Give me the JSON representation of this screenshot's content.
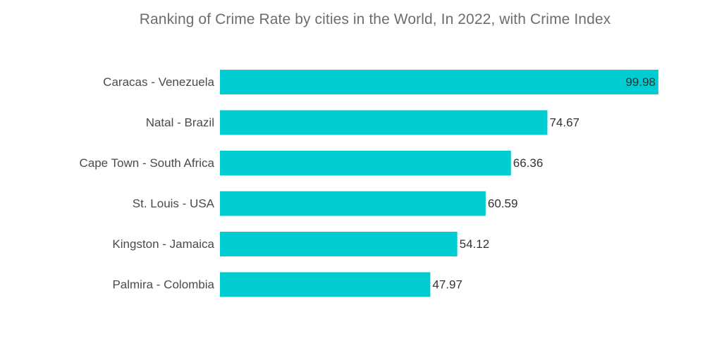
{
  "chart_data": {
    "type": "bar",
    "orientation": "horizontal",
    "title": "Ranking of Crime Rate by cities in the World, In 2022, with Crime Index",
    "xlabel": "",
    "ylabel": "",
    "categories": [
      "Caracas - Venezuela",
      "Natal - Brazil",
      "Cape Town - South Africa",
      "St. Louis - USA",
      "Kingston - Jamaica",
      "Palmira - Colombia"
    ],
    "values": [
      99.98,
      74.67,
      66.36,
      60.59,
      54.12,
      47.97
    ],
    "value_labels": [
      "99.98",
      "74.67",
      "66.36",
      "60.59",
      "54.12",
      "47.97"
    ],
    "xlim": [
      0,
      100
    ],
    "grid": false,
    "legend": "none",
    "bar_color": "#00cdd2"
  }
}
